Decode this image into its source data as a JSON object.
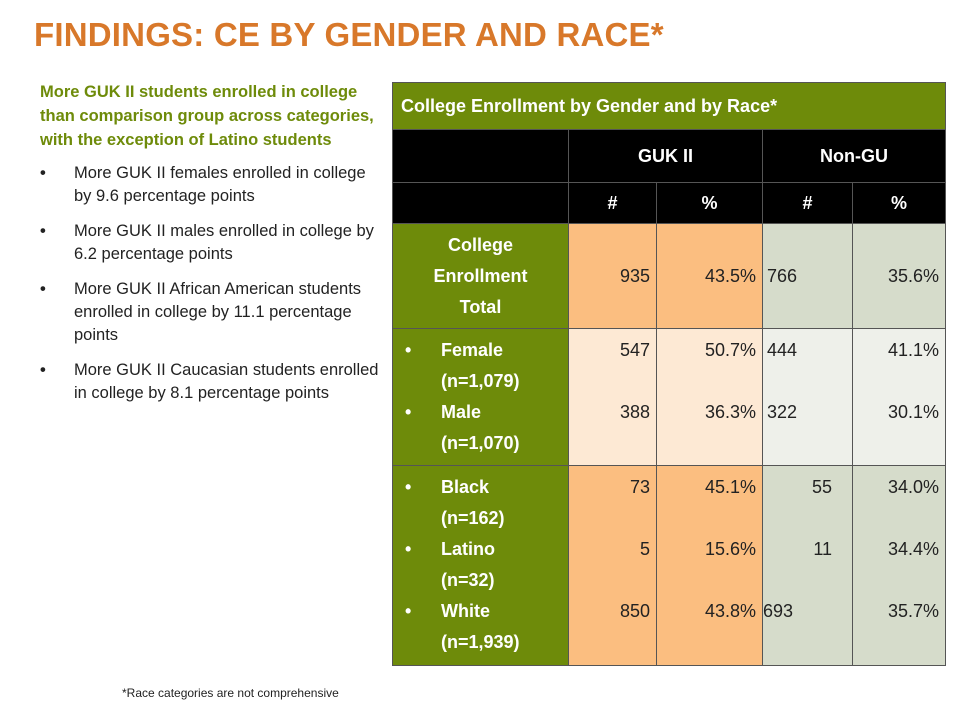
{
  "title": "FINDINGS: CE BY GENDER AND RACE*",
  "intro": "More GUK II students enrolled in college than comparison group across categories, with the exception of Latino students",
  "bullets": [
    "More GUK II females enrolled in college by 9.6 percentage points",
    "More GUK II males enrolled in college by 6.2 percentage points",
    "More GUK II African American students enrolled in college by 11.1 percentage points",
    "More GUK II Caucasian students enrolled in college by 8.1 percentage points"
  ],
  "footnote": "*Race categories are not comprehensive",
  "table": {
    "title": "College Enrollment by Gender and by Race*",
    "group_headers": [
      "GUK II",
      "Non-GU"
    ],
    "sub_headers": [
      "#",
      "%",
      "#",
      "%"
    ],
    "total": {
      "label_lines": [
        "College",
        "Enrollment",
        "Total"
      ],
      "values": [
        "935",
        "43.5%",
        "766",
        "35.6%"
      ]
    },
    "gender": [
      {
        "label": "Female",
        "n": "(n=1,079)",
        "values": [
          "547",
          "50.7%",
          "444",
          "41.1%"
        ]
      },
      {
        "label": "Male",
        "n": "(n=1,070)",
        "values": [
          "388",
          "36.3%",
          "322",
          "30.1%"
        ]
      }
    ],
    "race": [
      {
        "label": "Black",
        "n": "(n=162)",
        "values": [
          "73",
          "45.1%",
          "55",
          "34.0%"
        ]
      },
      {
        "label": "Latino",
        "n": "(n=32)",
        "values": [
          "5",
          "15.6%",
          "11",
          "34.4%"
        ]
      },
      {
        "label": "White",
        "n": "(n=1,939)",
        "values": [
          "850",
          "43.8%",
          "693",
          "35.7%"
        ]
      }
    ],
    "bullet_glyph": "•"
  }
}
